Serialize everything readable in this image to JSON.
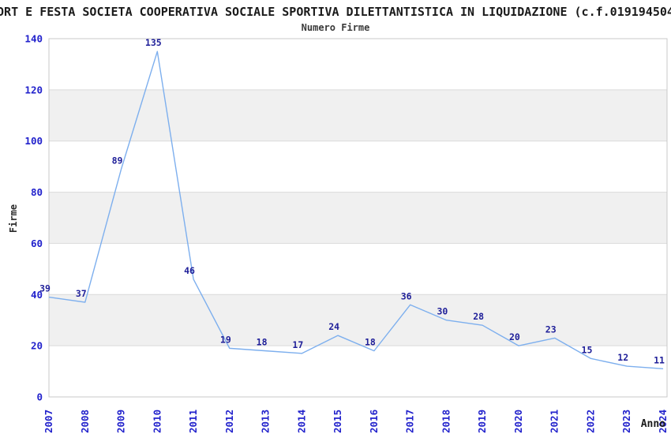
{
  "header": {
    "title_visible": "ORT E FESTA SOCIETA COOPERATIVA SOCIALE SPORTIVA DILETTANTISTICA IN LIQUIDAZIONE (c.f.019194504",
    "subtitle": "Numero Firme"
  },
  "chart_data": {
    "type": "line",
    "title": "Numero Firme",
    "xlabel": "Anno",
    "ylabel": "Firme",
    "categories": [
      "2007",
      "2008",
      "2009",
      "2010",
      "2011",
      "2012",
      "2013",
      "2014",
      "2015",
      "2016",
      "2017",
      "2018",
      "2019",
      "2020",
      "2021",
      "2022",
      "2023",
      "2024"
    ],
    "series": [
      {
        "name": "Numero Firme",
        "values": [
          39,
          37,
          89,
          135,
          46,
          19,
          18,
          17,
          24,
          18,
          36,
          30,
          28,
          20,
          23,
          15,
          12,
          11
        ]
      }
    ],
    "ylim": [
      0,
      140
    ],
    "ytick_step": 20,
    "yticks": [
      0,
      20,
      40,
      60,
      80,
      100,
      120,
      140
    ],
    "grid": true,
    "alternating_bands": true,
    "legend_position": "none",
    "data_labels_shown": true,
    "colors": {
      "line": "#7dafee",
      "data_label": "#1f1f99",
      "tick_label": "#2222cc",
      "band_fill": "#f0f0f0",
      "grid_line": "#d9d9d9",
      "plot_border": "#c9c9c9",
      "background": "#ffffff"
    }
  }
}
